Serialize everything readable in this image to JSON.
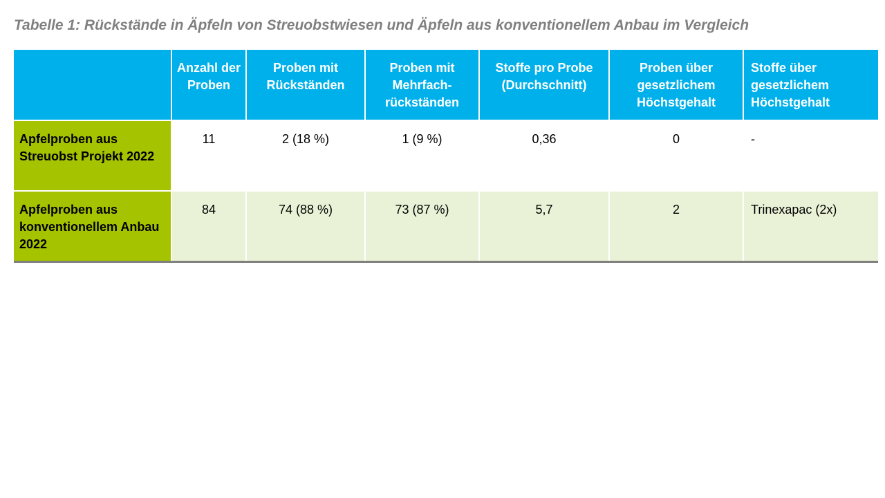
{
  "caption": "Tabelle 1: Rückstände in Äpfeln von Streuobstwiesen und Äpfeln aus konventionellem Anbau im Vergleich",
  "table": {
    "headers": [
      "",
      "Anzahl der Proben",
      "Proben mit Rückständen",
      "Proben mit Mehrfach-rückständen",
      "Stoffe pro Probe (Durchschnitt)",
      "Proben über gesetzlichem Höchstgehalt",
      "Stoffe über gesetzlichem Höchstgehalt"
    ],
    "rows": [
      {
        "label": "Apfelproben aus Streuobst Projekt 2022",
        "cells": [
          "11",
          "2 (18 %)",
          "1 (9 %)",
          "0,36",
          "0",
          "-"
        ]
      },
      {
        "label": "Apfelproben aus konventionellem Anbau 2022",
        "cells": [
          "84",
          "74 (88 %)",
          "73 (87 %)",
          "5,7",
          "2",
          "Trinexapac (2x)"
        ]
      }
    ]
  },
  "colors": {
    "header_bg": "#00b0eb",
    "row_label_bg": "#a6c300",
    "row_alt_bg": "#e9f2d6",
    "caption": "#808080"
  }
}
